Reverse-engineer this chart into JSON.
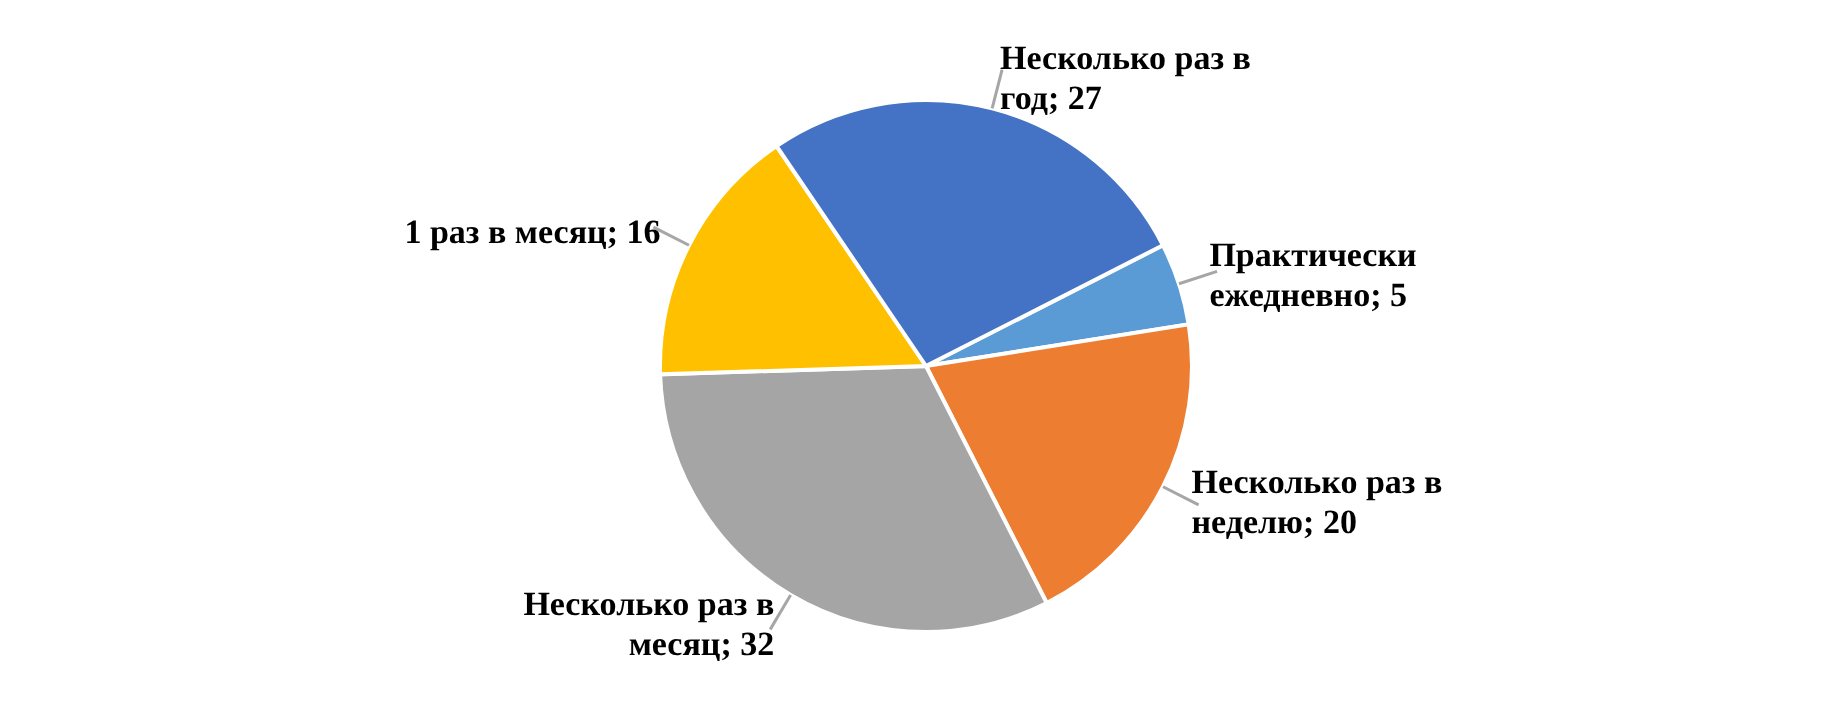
{
  "chart_data": {
    "type": "pie",
    "categories": [
      "Практически ежедневно",
      "Несколько раз в неделю",
      "Несколько раз в месяц",
      "1 раз в месяц",
      "Несколько раз в год"
    ],
    "values": [
      5,
      20,
      32,
      16,
      27
    ],
    "colors": [
      "#5b9bd5",
      "#ed7d31",
      "#a5a5a5",
      "#ffc000",
      "#4472c4"
    ],
    "value_labels": [
      "; 5",
      "; 20",
      "; 32",
      "; 16",
      "; 27"
    ]
  }
}
